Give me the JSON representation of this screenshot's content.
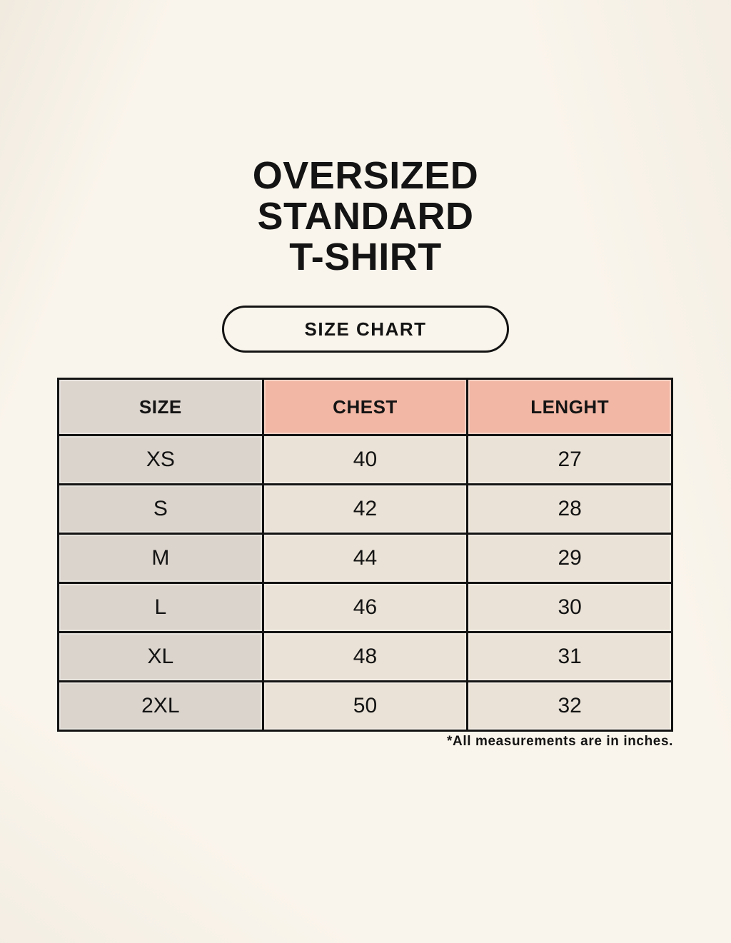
{
  "theme": {
    "page-bg": "#faf5ec",
    "ink": "#141414",
    "table-border": "#141414",
    "header-neutral-bg": "#dcd5ce",
    "header-accent-bg": "#f2b8a5",
    "size-col-bg": "#dbd4cc",
    "data-cell-bg": "#eae2d6"
  },
  "title": {
    "lines": [
      "OVERSIZED",
      "STANDARD",
      "T-SHIRT"
    ]
  },
  "size_chart_button": {
    "label": "SIZE CHART"
  },
  "table": {
    "headers": {
      "size": "SIZE",
      "chest": "CHEST",
      "length": "LENGHT"
    },
    "rows": [
      {
        "size": "XS",
        "chest": "40",
        "length": "27"
      },
      {
        "size": "S",
        "chest": "42",
        "length": "28"
      },
      {
        "size": "M",
        "chest": "44",
        "length": "29"
      },
      {
        "size": "L",
        "chest": "46",
        "length": "30"
      },
      {
        "size": "XL",
        "chest": "48",
        "length": "31"
      },
      {
        "size": "2XL",
        "chest": "50",
        "length": "32"
      }
    ]
  },
  "footnote": {
    "text": "*All measurements are in inches."
  },
  "chart_data": {
    "type": "table",
    "title": "OVERSIZED STANDARD T-SHIRT",
    "subtitle": "SIZE CHART",
    "columns": [
      "SIZE",
      "CHEST",
      "LENGHT"
    ],
    "rows": [
      [
        "XS",
        "40",
        "27"
      ],
      [
        "S",
        "42",
        "28"
      ],
      [
        "M",
        "44",
        "29"
      ],
      [
        "L",
        "46",
        "30"
      ],
      [
        "XL",
        "48",
        "31"
      ],
      [
        "2XL",
        "50",
        "32"
      ]
    ],
    "note": "*All measurements are in inches.",
    "units": "inches"
  }
}
